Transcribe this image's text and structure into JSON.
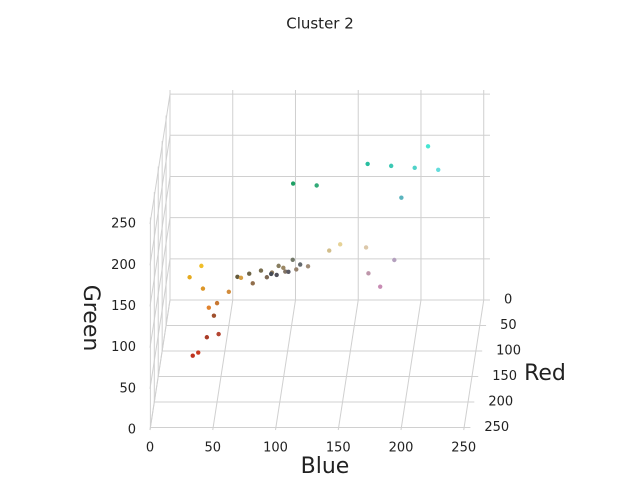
{
  "chart_data": {
    "type": "scatter3d",
    "title": "Cluster 2",
    "xlabel": "Blue",
    "ylabel": "Red",
    "zlabel": "Green",
    "xlim": [
      0,
      255
    ],
    "ylim": [
      0,
      255
    ],
    "zlim": [
      0,
      255
    ],
    "xticks": [
      0,
      50,
      100,
      150,
      200,
      250
    ],
    "yticks": [
      0,
      50,
      100,
      150,
      200,
      250
    ],
    "zticks": [
      0,
      50,
      100,
      150,
      200,
      250
    ],
    "grid": true,
    "red": [
      60,
      80,
      40,
      100,
      70,
      90,
      50,
      30,
      120,
      140,
      110,
      130,
      150,
      100,
      160,
      125,
      135,
      145,
      115,
      155,
      170,
      180,
      190,
      160,
      200,
      210,
      220,
      200,
      230,
      240,
      215,
      225,
      200,
      190,
      180,
      220,
      230,
      210,
      90,
      80,
      70,
      100
    ],
    "green": [
      200,
      210,
      190,
      220,
      230,
      180,
      170,
      160,
      110,
      120,
      100,
      115,
      130,
      90,
      140,
      105,
      125,
      110,
      120,
      135,
      60,
      70,
      50,
      80,
      60,
      140,
      150,
      120,
      170,
      190,
      160,
      130,
      140,
      150,
      160,
      200,
      210,
      190,
      90,
      80,
      75,
      105
    ],
    "blue": [
      180,
      200,
      160,
      220,
      210,
      190,
      120,
      100,
      80,
      90,
      70,
      100,
      110,
      60,
      120,
      85,
      95,
      75,
      105,
      100,
      40,
      50,
      30,
      45,
      35,
      60,
      40,
      50,
      30,
      40,
      70,
      45,
      180,
      170,
      190,
      170,
      150,
      140,
      100,
      90,
      85,
      110
    ]
  }
}
